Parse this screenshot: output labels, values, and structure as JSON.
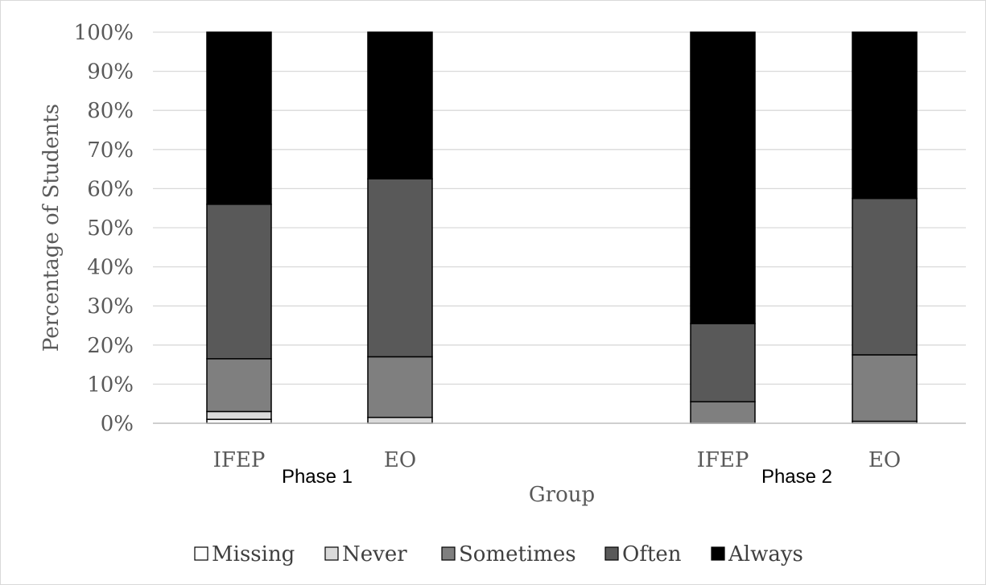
{
  "chart_data": {
    "type": "bar",
    "stacked": true,
    "categories": [
      "IFEP",
      "EO",
      "IFEP",
      "EO"
    ],
    "groups": [
      "Phase 1",
      "Phase 1",
      "Phase 2",
      "Phase 2"
    ],
    "group_labels": [
      "Phase 1",
      "Phase 2"
    ],
    "series": [
      {
        "name": "Missing",
        "values": [
          1,
          0,
          0,
          0
        ],
        "color": "#ffffff"
      },
      {
        "name": "Never",
        "values": [
          2,
          1.5,
          0,
          0.5
        ],
        "color": "#d9d9d9"
      },
      {
        "name": "Sometimes",
        "values": [
          13.5,
          15.5,
          5.5,
          17
        ],
        "color": "#7f7f7f"
      },
      {
        "name": "Often",
        "values": [
          39.5,
          45.5,
          20,
          40
        ],
        "color": "#595959"
      },
      {
        "name": "Always",
        "values": [
          44,
          37.5,
          74.5,
          42.5
        ],
        "color": "#000000"
      }
    ],
    "xlabel": "Group",
    "ylabel": "Percentage of Students",
    "ylim": [
      0,
      100
    ],
    "ytick_labels": [
      "0%",
      "10%",
      "20%",
      "30%",
      "40%",
      "50%",
      "60%",
      "70%",
      "80%",
      "90%",
      "100%"
    ],
    "grid": true,
    "legend_position": "bottom"
  }
}
